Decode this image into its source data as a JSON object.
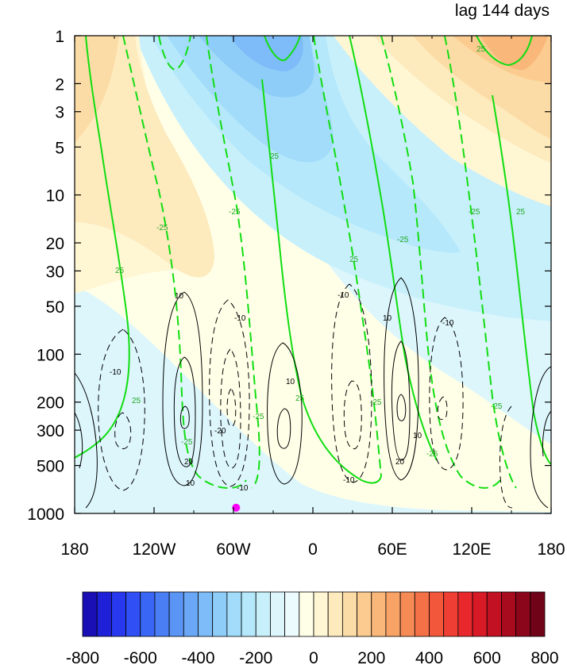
{
  "chart_data": {
    "type": "heatmap",
    "title": "lag 144 days",
    "xlabel": "",
    "ylabel": "",
    "x_ticks": [
      {
        "value": -180,
        "label": "180"
      },
      {
        "value": -120,
        "label": "120W"
      },
      {
        "value": -60,
        "label": "60W"
      },
      {
        "value": 0,
        "label": "0"
      },
      {
        "value": 60,
        "label": "60E"
      },
      {
        "value": 120,
        "label": "120E"
      },
      {
        "value": 180,
        "label": "180"
      }
    ],
    "y_scale": "log",
    "y_reversed": true,
    "y_range": [
      1000,
      1
    ],
    "y_ticks": [
      1,
      2,
      3,
      5,
      10,
      20,
      30,
      50,
      100,
      200,
      300,
      500,
      1000
    ],
    "marker": {
      "lon": -58,
      "lev": 920,
      "color": "#ff00ff"
    },
    "colorbar": {
      "levels": [
        -800,
        -750,
        -700,
        -650,
        -600,
        -550,
        -500,
        -450,
        -400,
        -350,
        -300,
        -250,
        -200,
        -150,
        -100,
        -50,
        0,
        50,
        100,
        150,
        200,
        250,
        300,
        350,
        400,
        450,
        500,
        550,
        600,
        650,
        700,
        750,
        800
      ],
      "colors": [
        "#1a0fb5",
        "#1e21d8",
        "#2838ef",
        "#3050f5",
        "#3a66f5",
        "#4a7ef5",
        "#5a94f5",
        "#6aa8f7",
        "#7dbcf8",
        "#8fcdf9",
        "#a2dcfa",
        "#b5e8fb",
        "#c8f0fb",
        "#dcf6fc",
        "#ecfbfd",
        "#ffffe8",
        "#fff6d4",
        "#fdeabd",
        "#fcdca6",
        "#fbcb8f",
        "#f9b77a",
        "#f8a266",
        "#f68a55",
        "#f47046",
        "#f2573b",
        "#ef3e33",
        "#e8282c",
        "#d81a27",
        "#c21122",
        "#a80a1e",
        "#8c061b",
        "#700317"
      ],
      "tick_labels": [
        "-800",
        "-600",
        "-400",
        "-200",
        "0",
        "200",
        "400",
        "600",
        "800"
      ]
    },
    "contour_labels": {
      "black": [
        "10",
        "-10",
        "20",
        "-20"
      ],
      "green": [
        "25",
        "-25"
      ]
    }
  }
}
